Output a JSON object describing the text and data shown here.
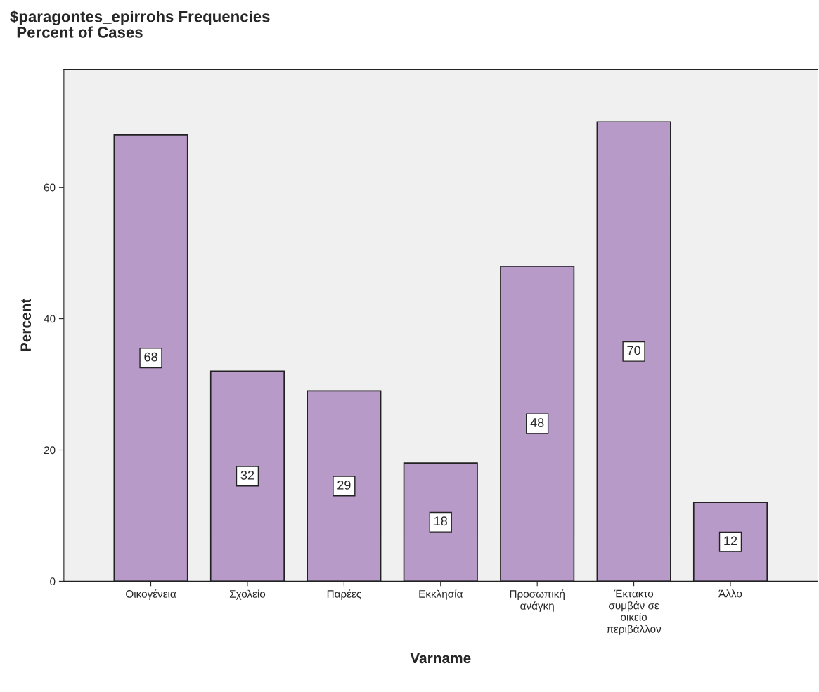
{
  "chart_data": {
    "type": "bar",
    "title": "$paragontes_epirrohs Frequencies",
    "subtitle": "Percent of Cases",
    "xlabel": "Varname",
    "ylabel": "Percent",
    "categories": [
      "Οικογένεια",
      "Σχολείο",
      "Παρέες",
      "Εκκλησία",
      "Προσωπική\nανάγκη",
      "Έκτακτο\nσυμβάν σε\nοικείο\nπεριβάλλον",
      "Άλλο"
    ],
    "values": [
      68,
      32,
      29,
      18,
      48,
      70,
      12
    ],
    "color": "#b89ac8",
    "ylim": [
      0,
      78
    ],
    "yticks": [
      0,
      20,
      40,
      60
    ],
    "grid": false,
    "data_labels": true
  }
}
